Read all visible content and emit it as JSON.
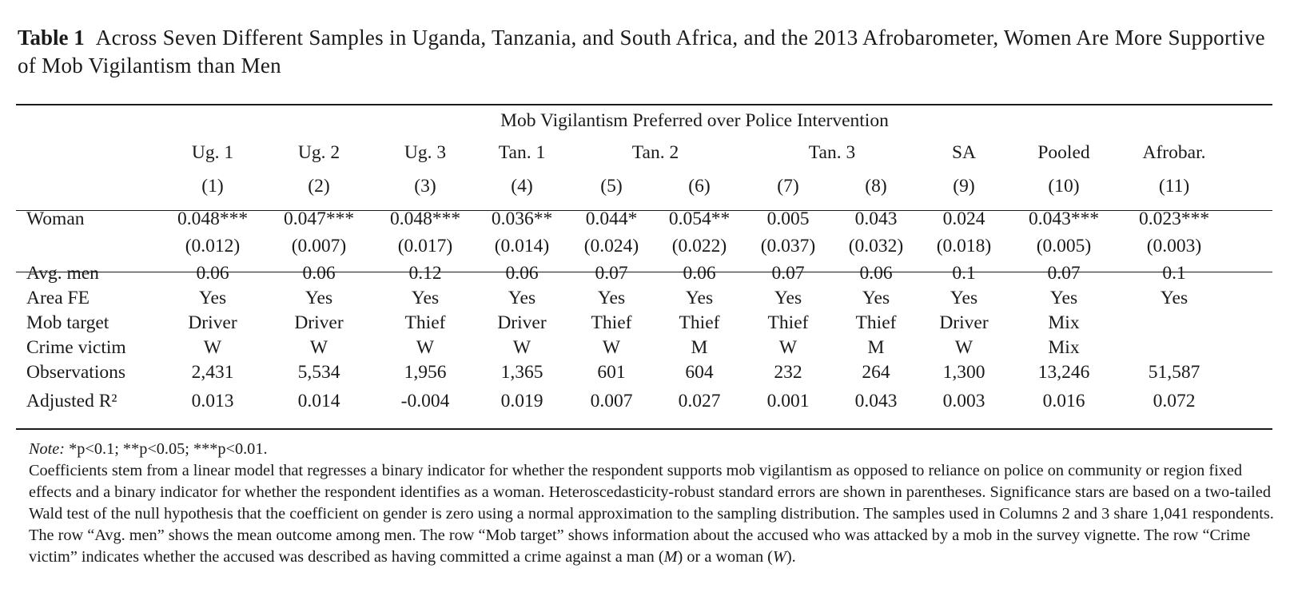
{
  "caption": {
    "label": "Table 1",
    "text": "Across Seven Different Samples in Uganda, Tanzania, and South Africa, and the 2013 Afrobarometer, Women Are More Supportive of Mob Vigilantism than Men"
  },
  "table": {
    "spanner": "Mob Vigilantism Preferred over Police Intervention",
    "groups": [
      {
        "label": "Ug. 1"
      },
      {
        "label": "Ug. 2"
      },
      {
        "label": "Ug. 3"
      },
      {
        "label": "Tan. 1"
      },
      {
        "label": "Tan. 2"
      },
      {
        "label": "Tan. 3"
      },
      {
        "label": "SA"
      },
      {
        "label": "Pooled"
      },
      {
        "label": "Afrobar."
      }
    ],
    "col_numbers": [
      "(1)",
      "(2)",
      "(3)",
      "(4)",
      "(5)",
      "(6)",
      "(7)",
      "(8)",
      "(9)",
      "(10)",
      "(11)"
    ],
    "woman_label": "Woman",
    "woman_coef": [
      "0.048***",
      "0.047***",
      "0.048***",
      "0.036**",
      "0.044*",
      "0.054**",
      "0.005",
      "0.043",
      "0.024",
      "0.043***",
      "0.023***"
    ],
    "woman_se": [
      "(0.012)",
      "(0.007)",
      "(0.017)",
      "(0.014)",
      "(0.024)",
      "(0.022)",
      "(0.037)",
      "(0.032)",
      "(0.018)",
      "(0.005)",
      "(0.003)"
    ],
    "rows": [
      {
        "label": "Avg. men",
        "values": [
          "0.06",
          "0.06",
          "0.12",
          "0.06",
          "0.07",
          "0.06",
          "0.07",
          "0.06",
          "0.1",
          "0.07",
          "0.1"
        ]
      },
      {
        "label": "Area FE",
        "values": [
          "Yes",
          "Yes",
          "Yes",
          "Yes",
          "Yes",
          "Yes",
          "Yes",
          "Yes",
          "Yes",
          "Yes",
          "Yes"
        ]
      },
      {
        "label": "Mob target",
        "values": [
          "Driver",
          "Driver",
          "Thief",
          "Driver",
          "Thief",
          "Thief",
          "Thief",
          "Thief",
          "Driver",
          "Mix",
          ""
        ]
      },
      {
        "label": "Crime victim",
        "values": [
          "W",
          "W",
          "W",
          "W",
          "W",
          "M",
          "W",
          "M",
          "W",
          "Mix",
          ""
        ]
      },
      {
        "label": "Observations",
        "values": [
          "2,431",
          "5,534",
          "1,956",
          "1,365",
          "601",
          "604",
          "232",
          "264",
          "1,300",
          "13,246",
          "51,587"
        ]
      },
      {
        "label": "Adjusted R²",
        "values": [
          "0.013",
          "0.014",
          "-0.004",
          "0.019",
          "0.007",
          "0.027",
          "0.001",
          "0.043",
          "0.003",
          "0.016",
          "0.072"
        ]
      }
    ]
  },
  "notes": {
    "note_label": "Note:",
    "note_text": " *p<0.1; **p<0.05; ***p<0.01.",
    "paragraph_a": "Coefficients stem from a linear model that regresses a binary indicator for whether the respondent supports mob vigilantism as opposed to reliance on police on community or region fixed effects and a binary indicator for whether the respondent identifies as a woman. Heteroscedasticity-robust standard errors are shown in parentheses. Significance stars are based on a two-tailed Wald test of the null hypothesis that the coefficient on gender is zero using a normal approximation to the sampling distribution. The samples used in Columns 2 and 3 share 1,041 respondents. The row “Avg. men” shows the mean outcome among men. The row “Mob target” shows information about the accused who was attacked by a mob in the survey vignette. The row “Crime victim” indicates whether the accused was described as having committed a crime against a man (",
    "m_letter": "M",
    "paragraph_b": ") or a woman (",
    "w_letter": "W",
    "paragraph_c": ")."
  }
}
